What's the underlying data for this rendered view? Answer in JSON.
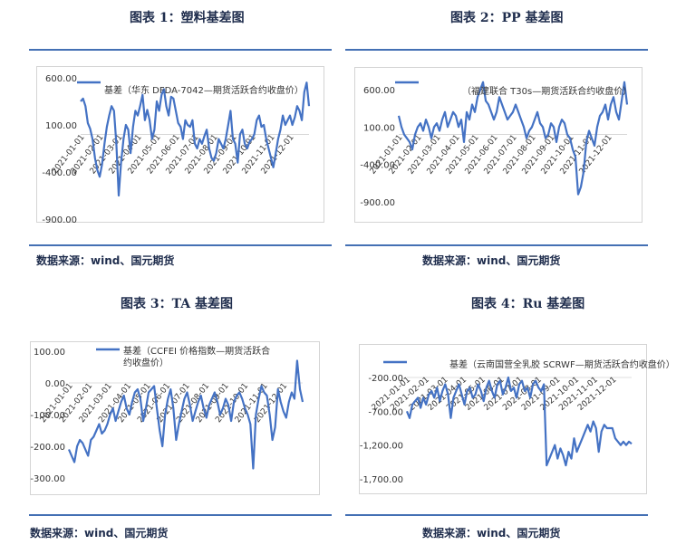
{
  "panels": [
    {
      "title": "图表 1：塑料基差图",
      "source": "数据来源：wind、国元期货"
    },
    {
      "title": "图表 2：PP 基差图",
      "source": "数据来源：wind、国元期货"
    },
    {
      "title": "图表 3：TA 基差图",
      "source": "数据来源：wind、国元期货"
    },
    {
      "title": "图表 4：Ru 基差图",
      "source": "数据来源：wind、国元期货"
    }
  ],
  "colors": {
    "series": "#4472c4",
    "rule": "#4470b4",
    "text": "#1f2d4d"
  },
  "chart_data": [
    {
      "type": "line",
      "series": [
        {
          "name": "基差（华东 DFDA-7042—期货活跃合约收盘价）",
          "values": [
            350,
            380,
            300,
            120,
            60,
            -50,
            -250,
            -380,
            -450,
            -320,
            -100,
            80,
            200,
            300,
            250,
            -100,
            -650,
            -300,
            -50,
            100,
            50,
            -200,
            80,
            250,
            200,
            300,
            420,
            150,
            260,
            150,
            -50,
            50,
            350,
            250,
            420,
            480,
            300,
            200,
            400,
            380,
            250,
            120,
            80,
            -50,
            150,
            100,
            80,
            150,
            -100,
            -150,
            -50,
            -100,
            -20,
            50,
            -150,
            -250,
            -280,
            -200,
            -50,
            -100,
            -150,
            -50,
            100,
            250,
            -50,
            -100,
            -300,
            0,
            50,
            -100,
            -150,
            -80,
            -50,
            0,
            150,
            200,
            80,
            100,
            -50,
            -150,
            -250,
            -350,
            -200,
            -50,
            50,
            200,
            100,
            150,
            200,
            100,
            180,
            300,
            250,
            150,
            450,
            550,
            300
          ]
        }
      ],
      "x_tick_labels": [
        "2021-01-01",
        "2021-02-01",
        "2021-03-01",
        "2021-04-01",
        "2021-05-01",
        "2021-06-01",
        "2021-07-01",
        "2021-08-01",
        "2021-09-01",
        "2021-10-01",
        "2021-11-01",
        "2021-12-01"
      ],
      "y_tick_labels": [
        "600.00",
        "100.00",
        "-400.00",
        "-900.00"
      ],
      "ylim": [
        -900,
        600
      ],
      "legend": "top"
    },
    {
      "type": "line",
      "series": [
        {
          "name": "（福建联合 T30s—期货活跃合约收盘价）",
          "values": [
            250,
            100,
            0,
            -50,
            -100,
            -200,
            0,
            100,
            150,
            50,
            200,
            100,
            -50,
            100,
            150,
            50,
            200,
            300,
            100,
            200,
            300,
            250,
            100,
            200,
            -100,
            300,
            200,
            400,
            300,
            500,
            600,
            700,
            450,
            400,
            300,
            200,
            300,
            500,
            400,
            300,
            200,
            250,
            300,
            400,
            300,
            200,
            100,
            -50,
            50,
            100,
            200,
            300,
            150,
            100,
            -50,
            0,
            150,
            100,
            -100,
            100,
            200,
            150,
            0,
            -50,
            -200,
            -300,
            -800,
            -700,
            -500,
            -100,
            50,
            -50,
            -150,
            100,
            250,
            300,
            400,
            200,
            400,
            500,
            300,
            200,
            450,
            700,
            400
          ]
        }
      ],
      "x_tick_labels": [
        "2021-01-01",
        "2021-02-01",
        "2021-03-01",
        "2021-04-01",
        "2021-05-01",
        "2021-06-01",
        "2021-07-01",
        "2021-08-01",
        "2021-09-01",
        "2021-10-01",
        "2021-11-01",
        "2021-12-01"
      ],
      "y_tick_labels": [
        "600.00",
        "100.00",
        "-400.00",
        "-900.00"
      ],
      "ylim": [
        -900,
        600
      ],
      "legend": "top"
    },
    {
      "type": "line",
      "series": [
        {
          "name": "基差（CCFEI 价格指数—期货活跃合约收盘价）",
          "values": [
            -210,
            -230,
            -250,
            -200,
            -180,
            -190,
            -210,
            -230,
            -180,
            -170,
            -150,
            -130,
            -160,
            -150,
            -130,
            -100,
            -80,
            -120,
            -90,
            -60,
            -40,
            -80,
            -100,
            -60,
            -30,
            -20,
            -50,
            -120,
            -80,
            -30,
            -20,
            -10,
            -80,
            -150,
            -200,
            -100,
            -50,
            -20,
            -80,
            -180,
            -130,
            -90,
            -50,
            -30,
            -70,
            -120,
            -90,
            -60,
            -40,
            -80,
            -110,
            -70,
            -50,
            -30,
            -60,
            -100,
            -80,
            -50,
            -70,
            -120,
            -60,
            -40,
            -30,
            -50,
            -80,
            -100,
            -130,
            -270,
            -100,
            -50,
            -10,
            -30,
            -40,
            -100,
            -180,
            -140,
            -20,
            -60,
            -90,
            -110,
            -60,
            -30,
            -50,
            70,
            -20,
            -60
          ]
        }
      ],
      "x_tick_labels": [
        "2021-01-01",
        "2021-02-01",
        "2021-03-01",
        "2021-04-01",
        "2021-05-01",
        "2021-06-01",
        "2021-07-01",
        "2021-08-01",
        "2021-09-01",
        "2021-10-01",
        "2021-11-01",
        "2021-12-01"
      ],
      "y_tick_labels": [
        "100.00",
        "0.00",
        "-100.00",
        "-200.00",
        "-300.00"
      ],
      "ylim": [
        -300,
        100
      ],
      "legend": "top"
    },
    {
      "type": "line",
      "series": [
        {
          "name": "基差（云南国营全乳胶 SCRWF—期货活跃合约收盘价）",
          "values": [
            -700,
            -800,
            -600,
            -550,
            -500,
            -650,
            -500,
            -600,
            -450,
            -400,
            -500,
            -350,
            -550,
            -400,
            -300,
            -450,
            -800,
            -500,
            -400,
            -300,
            -450,
            -600,
            -400,
            -350,
            -500,
            -450,
            -300,
            -400,
            -550,
            -350,
            -250,
            -400,
            -500,
            -300,
            -250,
            -450,
            -350,
            -200,
            -400,
            -350,
            -500,
            -300,
            -250,
            -400,
            -350,
            -500,
            -300,
            -250,
            -350,
            -400,
            -300,
            -1500,
            -1400,
            -1300,
            -1200,
            -1400,
            -1250,
            -1350,
            -1500,
            -1300,
            -1400,
            -1100,
            -1300,
            -1200,
            -1100,
            -1000,
            -900,
            -1000,
            -850,
            -950,
            -1300,
            -1000,
            -900,
            -950,
            -950,
            -950,
            -1100,
            -1150,
            -1200,
            -1150,
            -1200,
            -1150,
            -1180
          ]
        }
      ],
      "x_tick_labels": [
        "2021-01-01",
        "2021-02-01",
        "2021-03-01",
        "2021-04-01",
        "2021-05-01",
        "2021-06-01",
        "2021-07-01",
        "2021-08-01",
        "2021-09-01",
        "2021-10-01",
        "2021-11-01",
        "2021-12-01"
      ],
      "y_tick_labels": [
        "-200.00",
        "-700.00",
        "-1,200.00",
        "-1,700.00"
      ],
      "ylim": [
        -1700,
        -200
      ],
      "legend": "top"
    }
  ]
}
